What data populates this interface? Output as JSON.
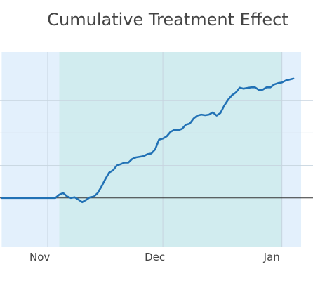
{
  "chart_data": {
    "type": "line",
    "title": "Cumulative Treatment Effect",
    "xlabel": "",
    "ylabel": "",
    "x_ticks": [
      "Nov",
      "Dec",
      "Jan"
    ],
    "x_tick_dates": [
      "2023-11-01",
      "2023-12-01",
      "2024-01-01"
    ],
    "xlim": [
      "2023-10-20",
      "2024-01-06"
    ],
    "ylim": [
      -0.15,
      0.45
    ],
    "gridlines": true,
    "baseline": 0,
    "shaded_regions": [
      {
        "name": "pre-period",
        "start": "2023-10-20",
        "end": "2023-11-04",
        "color": "#e3f0fc"
      },
      {
        "name": "post-period",
        "start": "2023-11-04",
        "end": "2024-01-01",
        "color": "#d1ecef"
      },
      {
        "name": "after-period",
        "start": "2024-01-01",
        "end": "2024-01-06",
        "color": "#e3f0fc"
      }
    ],
    "series": [
      {
        "color": "#2171b5",
        "points": [
          [
            "2023-10-20",
            0.0
          ],
          [
            "2023-10-25",
            0.0
          ],
          [
            "2023-10-30",
            0.0
          ],
          [
            "2023-11-02",
            0.0
          ],
          [
            "2023-11-03",
            0.0
          ],
          [
            "2023-11-04",
            0.01
          ],
          [
            "2023-11-05",
            0.015
          ],
          [
            "2023-11-06",
            0.005
          ],
          [
            "2023-11-07",
            0.0
          ],
          [
            "2023-11-08",
            0.002
          ],
          [
            "2023-11-09",
            -0.005
          ],
          [
            "2023-11-10",
            -0.013
          ],
          [
            "2023-11-11",
            -0.006
          ],
          [
            "2023-11-12",
            0.002
          ],
          [
            "2023-11-13",
            0.004
          ],
          [
            "2023-11-14",
            0.015
          ],
          [
            "2023-11-15",
            0.035
          ],
          [
            "2023-11-16",
            0.058
          ],
          [
            "2023-11-17",
            0.078
          ],
          [
            "2023-11-18",
            0.085
          ],
          [
            "2023-11-19",
            0.1
          ],
          [
            "2023-11-20",
            0.104
          ],
          [
            "2023-11-21",
            0.109
          ],
          [
            "2023-11-22",
            0.109
          ],
          [
            "2023-11-23",
            0.12
          ],
          [
            "2023-11-24",
            0.125
          ],
          [
            "2023-11-25",
            0.127
          ],
          [
            "2023-11-26",
            0.129
          ],
          [
            "2023-11-27",
            0.135
          ],
          [
            "2023-11-28",
            0.137
          ],
          [
            "2023-11-29",
            0.15
          ],
          [
            "2023-11-30",
            0.18
          ],
          [
            "2023-12-01",
            0.183
          ],
          [
            "2023-12-02",
            0.19
          ],
          [
            "2023-12-03",
            0.204
          ],
          [
            "2023-12-04",
            0.21
          ],
          [
            "2023-12-05",
            0.209
          ],
          [
            "2023-12-06",
            0.213
          ],
          [
            "2023-12-07",
            0.226
          ],
          [
            "2023-12-08",
            0.229
          ],
          [
            "2023-12-09",
            0.245
          ],
          [
            "2023-12-10",
            0.254
          ],
          [
            "2023-12-11",
            0.257
          ],
          [
            "2023-12-12",
            0.255
          ],
          [
            "2023-12-13",
            0.257
          ],
          [
            "2023-12-14",
            0.264
          ],
          [
            "2023-12-15",
            0.254
          ],
          [
            "2023-12-16",
            0.262
          ],
          [
            "2023-12-17",
            0.285
          ],
          [
            "2023-12-18",
            0.303
          ],
          [
            "2023-12-19",
            0.317
          ],
          [
            "2023-12-20",
            0.325
          ],
          [
            "2023-12-21",
            0.34
          ],
          [
            "2023-12-22",
            0.337
          ],
          [
            "2023-12-23",
            0.339
          ],
          [
            "2023-12-24",
            0.341
          ],
          [
            "2023-12-25",
            0.341
          ],
          [
            "2023-12-26",
            0.333
          ],
          [
            "2023-12-27",
            0.334
          ],
          [
            "2023-12-28",
            0.341
          ],
          [
            "2023-12-29",
            0.341
          ],
          [
            "2023-12-30",
            0.35
          ],
          [
            "2023-12-31",
            0.354
          ],
          [
            "2024-01-01",
            0.356
          ],
          [
            "2024-01-02",
            0.362
          ],
          [
            "2024-01-03",
            0.365
          ],
          [
            "2024-01-04",
            0.368
          ]
        ]
      }
    ]
  }
}
